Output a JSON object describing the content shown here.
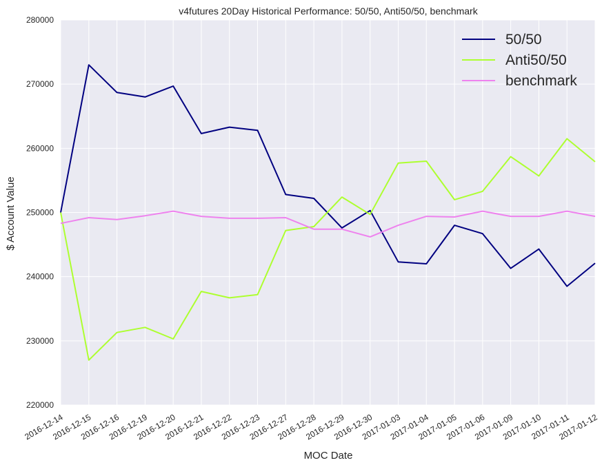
{
  "chart_data": {
    "type": "line",
    "title": "v4futures 20Day Historical Performance: 50/50, Anti50/50, benchmark",
    "xlabel": "MOC Date",
    "ylabel": "$ Account Value",
    "categories": [
      "2016-12-14",
      "2016-12-15",
      "2016-12-16",
      "2016-12-19",
      "2016-12-20",
      "2016-12-21",
      "2016-12-22",
      "2016-12-23",
      "2016-12-27",
      "2016-12-28",
      "2016-12-29",
      "2016-12-30",
      "2017-01-03",
      "2017-01-04",
      "2017-01-05",
      "2017-01-06",
      "2017-01-09",
      "2017-01-10",
      "2017-01-11",
      "2017-01-12"
    ],
    "ylim": [
      220000,
      280000
    ],
    "yticks": [
      220000,
      230000,
      240000,
      250000,
      260000,
      270000,
      280000
    ],
    "ytick_labels": [
      "220000",
      "230000",
      "240000",
      "250000",
      "260000",
      "270000",
      "280000"
    ],
    "grid": true,
    "legend_position": "top-right",
    "series": [
      {
        "name": "50/50",
        "color": "#000080",
        "values": [
          250000,
          273000,
          268700,
          268000,
          269700,
          262300,
          263300,
          262800,
          252800,
          252200,
          247600,
          250300,
          242300,
          242000,
          248000,
          246700,
          241300,
          244300,
          238500,
          242100
        ]
      },
      {
        "name": "Anti50/50",
        "color": "#adff2f",
        "values": [
          250000,
          227000,
          231300,
          232100,
          230300,
          237700,
          236700,
          237200,
          247200,
          247800,
          252400,
          249700,
          257700,
          258000,
          252000,
          253300,
          258700,
          255700,
          261500,
          257900
        ]
      },
      {
        "name": "benchmark",
        "color": "#ee82ee",
        "values": [
          248300,
          249200,
          248900,
          249500,
          250200,
          249400,
          249100,
          249100,
          249200,
          247400,
          247400,
          246200,
          248000,
          249400,
          249300,
          250200,
          249400,
          249400,
          250200,
          249400
        ]
      }
    ]
  }
}
